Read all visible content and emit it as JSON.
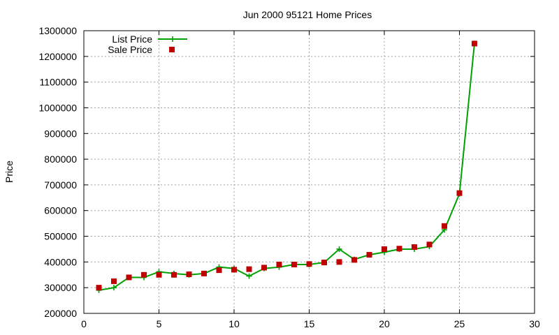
{
  "chart_data": {
    "type": "line",
    "title": "Jun 2000 95121 Home Prices",
    "xlabel": "",
    "ylabel": "Price",
    "xlim": [
      0,
      30
    ],
    "ylim": [
      200000,
      1300000
    ],
    "x_ticks": [
      0,
      5,
      10,
      15,
      20,
      25,
      30
    ],
    "y_ticks": [
      200000,
      300000,
      400000,
      500000,
      600000,
      700000,
      800000,
      900000,
      1000000,
      1100000,
      1200000,
      1300000
    ],
    "grid": true,
    "legend_position": "top-left",
    "series": [
      {
        "name": "List Price",
        "style": "line-with-plus-markers",
        "color": "#00a000",
        "x": [
          1,
          2,
          3,
          4,
          5,
          6,
          7,
          8,
          9,
          10,
          11,
          12,
          13,
          14,
          15,
          16,
          17,
          18,
          19,
          20,
          21,
          22,
          23,
          24,
          25,
          26
        ],
        "y": [
          290000,
          300000,
          340000,
          340000,
          362000,
          355000,
          350000,
          355000,
          380000,
          375000,
          345000,
          375000,
          380000,
          390000,
          390000,
          398000,
          450000,
          410000,
          428000,
          438000,
          450000,
          450000,
          460000,
          525000,
          665000,
          1250000
        ]
      },
      {
        "name": "Sale Price",
        "style": "square-markers",
        "color": "#c00000",
        "x": [
          1,
          2,
          3,
          4,
          5,
          6,
          7,
          8,
          9,
          10,
          11,
          12,
          13,
          14,
          15,
          16,
          17,
          18,
          19,
          20,
          21,
          22,
          23,
          24,
          25,
          26
        ],
        "y": [
          300000,
          325000,
          340000,
          350000,
          350000,
          350000,
          352000,
          355000,
          368000,
          370000,
          372000,
          378000,
          390000,
          390000,
          392000,
          398000,
          400000,
          408000,
          428000,
          450000,
          452000,
          458000,
          468000,
          540000,
          668000,
          1250000
        ]
      }
    ]
  }
}
